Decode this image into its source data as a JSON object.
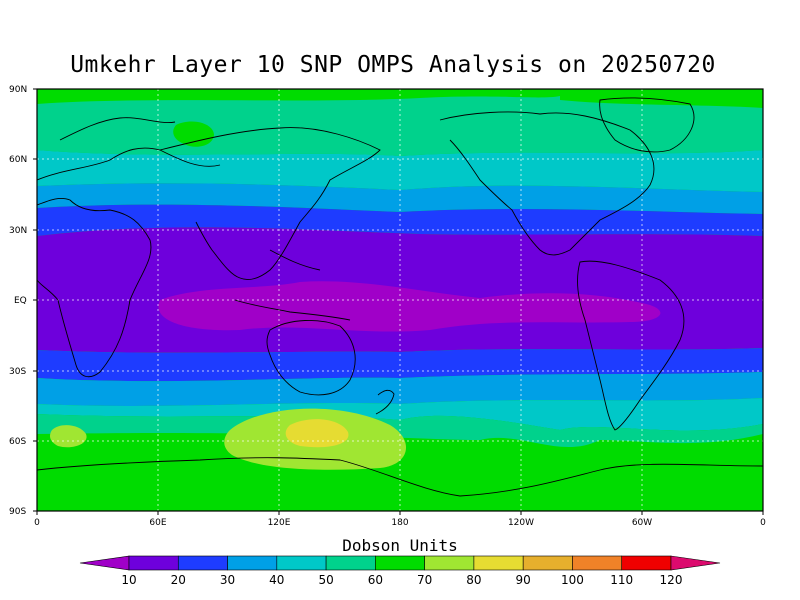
{
  "title": "Umkehr Layer 10 SNP OMPS Analysis on 20250720",
  "colorbar": {
    "units_label": "Dobson Units",
    "ticks": [
      "10",
      "20",
      "30",
      "40",
      "50",
      "60",
      "70",
      "80",
      "90",
      "100",
      "110",
      "120"
    ],
    "colors": [
      "#a000c8",
      "#6e00dc",
      "#1e3cff",
      "#00a0e6",
      "#00c8c8",
      "#00d28c",
      "#00dc00",
      "#a0e632",
      "#e6dc32",
      "#e6af2d",
      "#f08228",
      "#f00000",
      "#dc0a6e"
    ]
  },
  "map": {
    "lat_labels": [
      "90N",
      "60N",
      "30N",
      "EQ",
      "30S",
      "60S",
      "90S"
    ],
    "lon_labels": [
      "0",
      "60E",
      "120E",
      "180",
      "120W",
      "60W",
      "0"
    ]
  },
  "chart_data": {
    "type": "heatmap",
    "title": "Umkehr Layer 10 SNP OMPS Analysis on 20250720",
    "units": "Dobson Units",
    "levels": [
      10,
      20,
      30,
      40,
      50,
      60,
      70,
      80,
      90,
      100,
      110,
      120
    ],
    "xrange": [
      0,
      360
    ],
    "yrange": [
      -90,
      90
    ],
    "zonal_bands": [
      {
        "lat_range": [
          90,
          78
        ],
        "value_range": [
          60,
          70
        ]
      },
      {
        "lat_range": [
          78,
          62
        ],
        "value_range": [
          50,
          60
        ]
      },
      {
        "lat_range": [
          62,
          52
        ],
        "value_range": [
          40,
          50
        ]
      },
      {
        "lat_range": [
          52,
          42
        ],
        "value_range": [
          30,
          40
        ]
      },
      {
        "lat_range": [
          42,
          28
        ],
        "value_range": [
          20,
          30
        ]
      },
      {
        "lat_range": [
          28,
          5
        ],
        "value_range": [
          10,
          20
        ]
      },
      {
        "lat_range": [
          5,
          -15
        ],
        "value_range": [
          0,
          10
        ]
      },
      {
        "lat_range": [
          -15,
          -28
        ],
        "value_range": [
          10,
          20
        ]
      },
      {
        "lat_range": [
          -28,
          -36
        ],
        "value_range": [
          20,
          30
        ]
      },
      {
        "lat_range": [
          -36,
          -44
        ],
        "value_range": [
          30,
          40
        ]
      },
      {
        "lat_range": [
          -44,
          -52
        ],
        "value_range": [
          40,
          50
        ]
      },
      {
        "lat_range": [
          -52,
          -66
        ],
        "value_range": [
          60,
          70
        ]
      },
      {
        "lat_range": [
          -66,
          -90
        ],
        "value_range": [
          60,
          70
        ]
      }
    ],
    "features": [
      {
        "description": "equatorial minimum",
        "lon_range": [
          120,
          205
        ],
        "lat_range": [
          -15,
          5
        ],
        "value_range": [
          0,
          10
        ]
      },
      {
        "description": "southern maximum",
        "lon_range": [
          105,
          170
        ],
        "lat_range": [
          -70,
          -50
        ],
        "value_range": [
          80,
          90
        ]
      },
      {
        "description": "southern secondary",
        "lon_range": [
          5,
          15
        ],
        "lat_range": [
          -65,
          -55
        ],
        "value_range": [
          70,
          80
        ]
      }
    ],
    "grid": true
  }
}
